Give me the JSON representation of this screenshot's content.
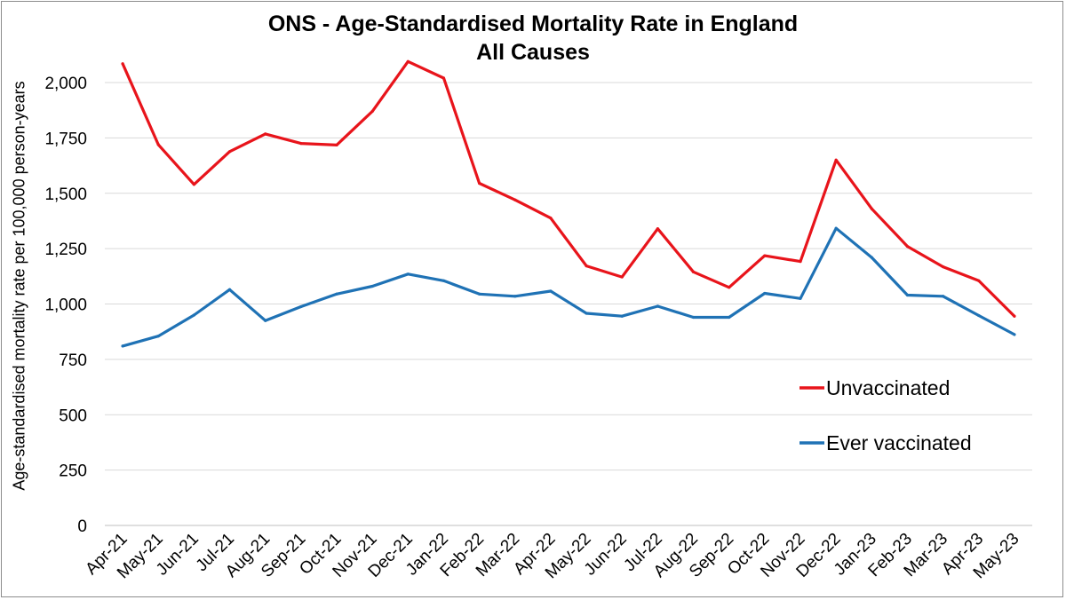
{
  "chart_data": {
    "type": "line",
    "title": "ONS - Age-Standardised Mortality Rate in England",
    "subtitle": "All Causes",
    "xlabel": "",
    "ylabel": "Age-standardised mortality rate per 100,000 person-years",
    "ylim": [
      0,
      2000
    ],
    "yticks": [
      0,
      250,
      500,
      750,
      1000,
      1250,
      1500,
      1750,
      2000
    ],
    "ytick_labels": [
      "0",
      "250",
      "500",
      "750",
      "1,000",
      "1,250",
      "1,500",
      "1,750",
      "2,000"
    ],
    "grid": true,
    "legend_position": "bottom-right",
    "categories": [
      "Apr-21",
      "May-21",
      "Jun-21",
      "Jul-21",
      "Aug-21",
      "Sep-21",
      "Oct-21",
      "Nov-21",
      "Dec-21",
      "Jan-22",
      "Feb-22",
      "Mar-22",
      "Apr-22",
      "May-22",
      "Jun-22",
      "Jul-22",
      "Aug-22",
      "Sep-22",
      "Oct-22",
      "Nov-22",
      "Dec-22",
      "Jan-23",
      "Feb-23",
      "Mar-23",
      "Apr-23",
      "May-23"
    ],
    "series": [
      {
        "name": "Unvaccinated",
        "color": "#e8141b",
        "values": [
          2085,
          1720,
          1540,
          1688,
          1768,
          1725,
          1718,
          1870,
          2095,
          2020,
          1545,
          1470,
          1388,
          1172,
          1122,
          1340,
          1145,
          1075,
          1218,
          1192,
          1650,
          1430,
          1260,
          1168,
          1105,
          945
        ]
      },
      {
        "name": "Ever vaccinated",
        "color": "#1f72b5",
        "values": [
          810,
          855,
          950,
          1065,
          925,
          988,
          1045,
          1080,
          1135,
          1105,
          1045,
          1035,
          1058,
          958,
          945,
          990,
          940,
          940,
          1048,
          1025,
          1342,
          1210,
          1040,
          1035,
          948,
          862
        ]
      }
    ]
  },
  "colors": {
    "gridline": "#d9d9d9",
    "axis": "#bfbfbf",
    "text": "#000000"
  }
}
